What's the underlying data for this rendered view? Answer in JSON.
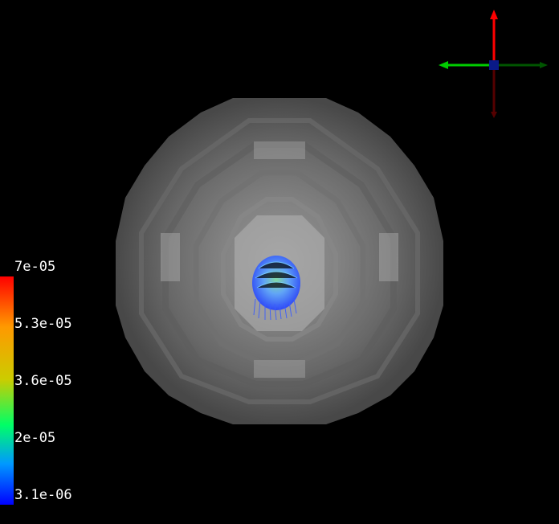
{
  "viewport": {
    "background": "#000000",
    "object": "voxelized-sphere",
    "object_color": "#8a8a8a",
    "glyphs": "streamlines"
  },
  "colorbar": {
    "labels": [
      "7e-05",
      "5.3e-05",
      "3.6e-05",
      "2e-05",
      "3.1e-06"
    ],
    "colormap": [
      "#ff0000",
      "#ffaa00",
      "#dddd00",
      "#00ff66",
      "#00aaff",
      "#0000ff"
    ]
  },
  "axes": {
    "x_color": "#00cc00",
    "y_color": "#ff0000",
    "z_color": "#0000aa",
    "icon": "orientation-axes-icon"
  }
}
